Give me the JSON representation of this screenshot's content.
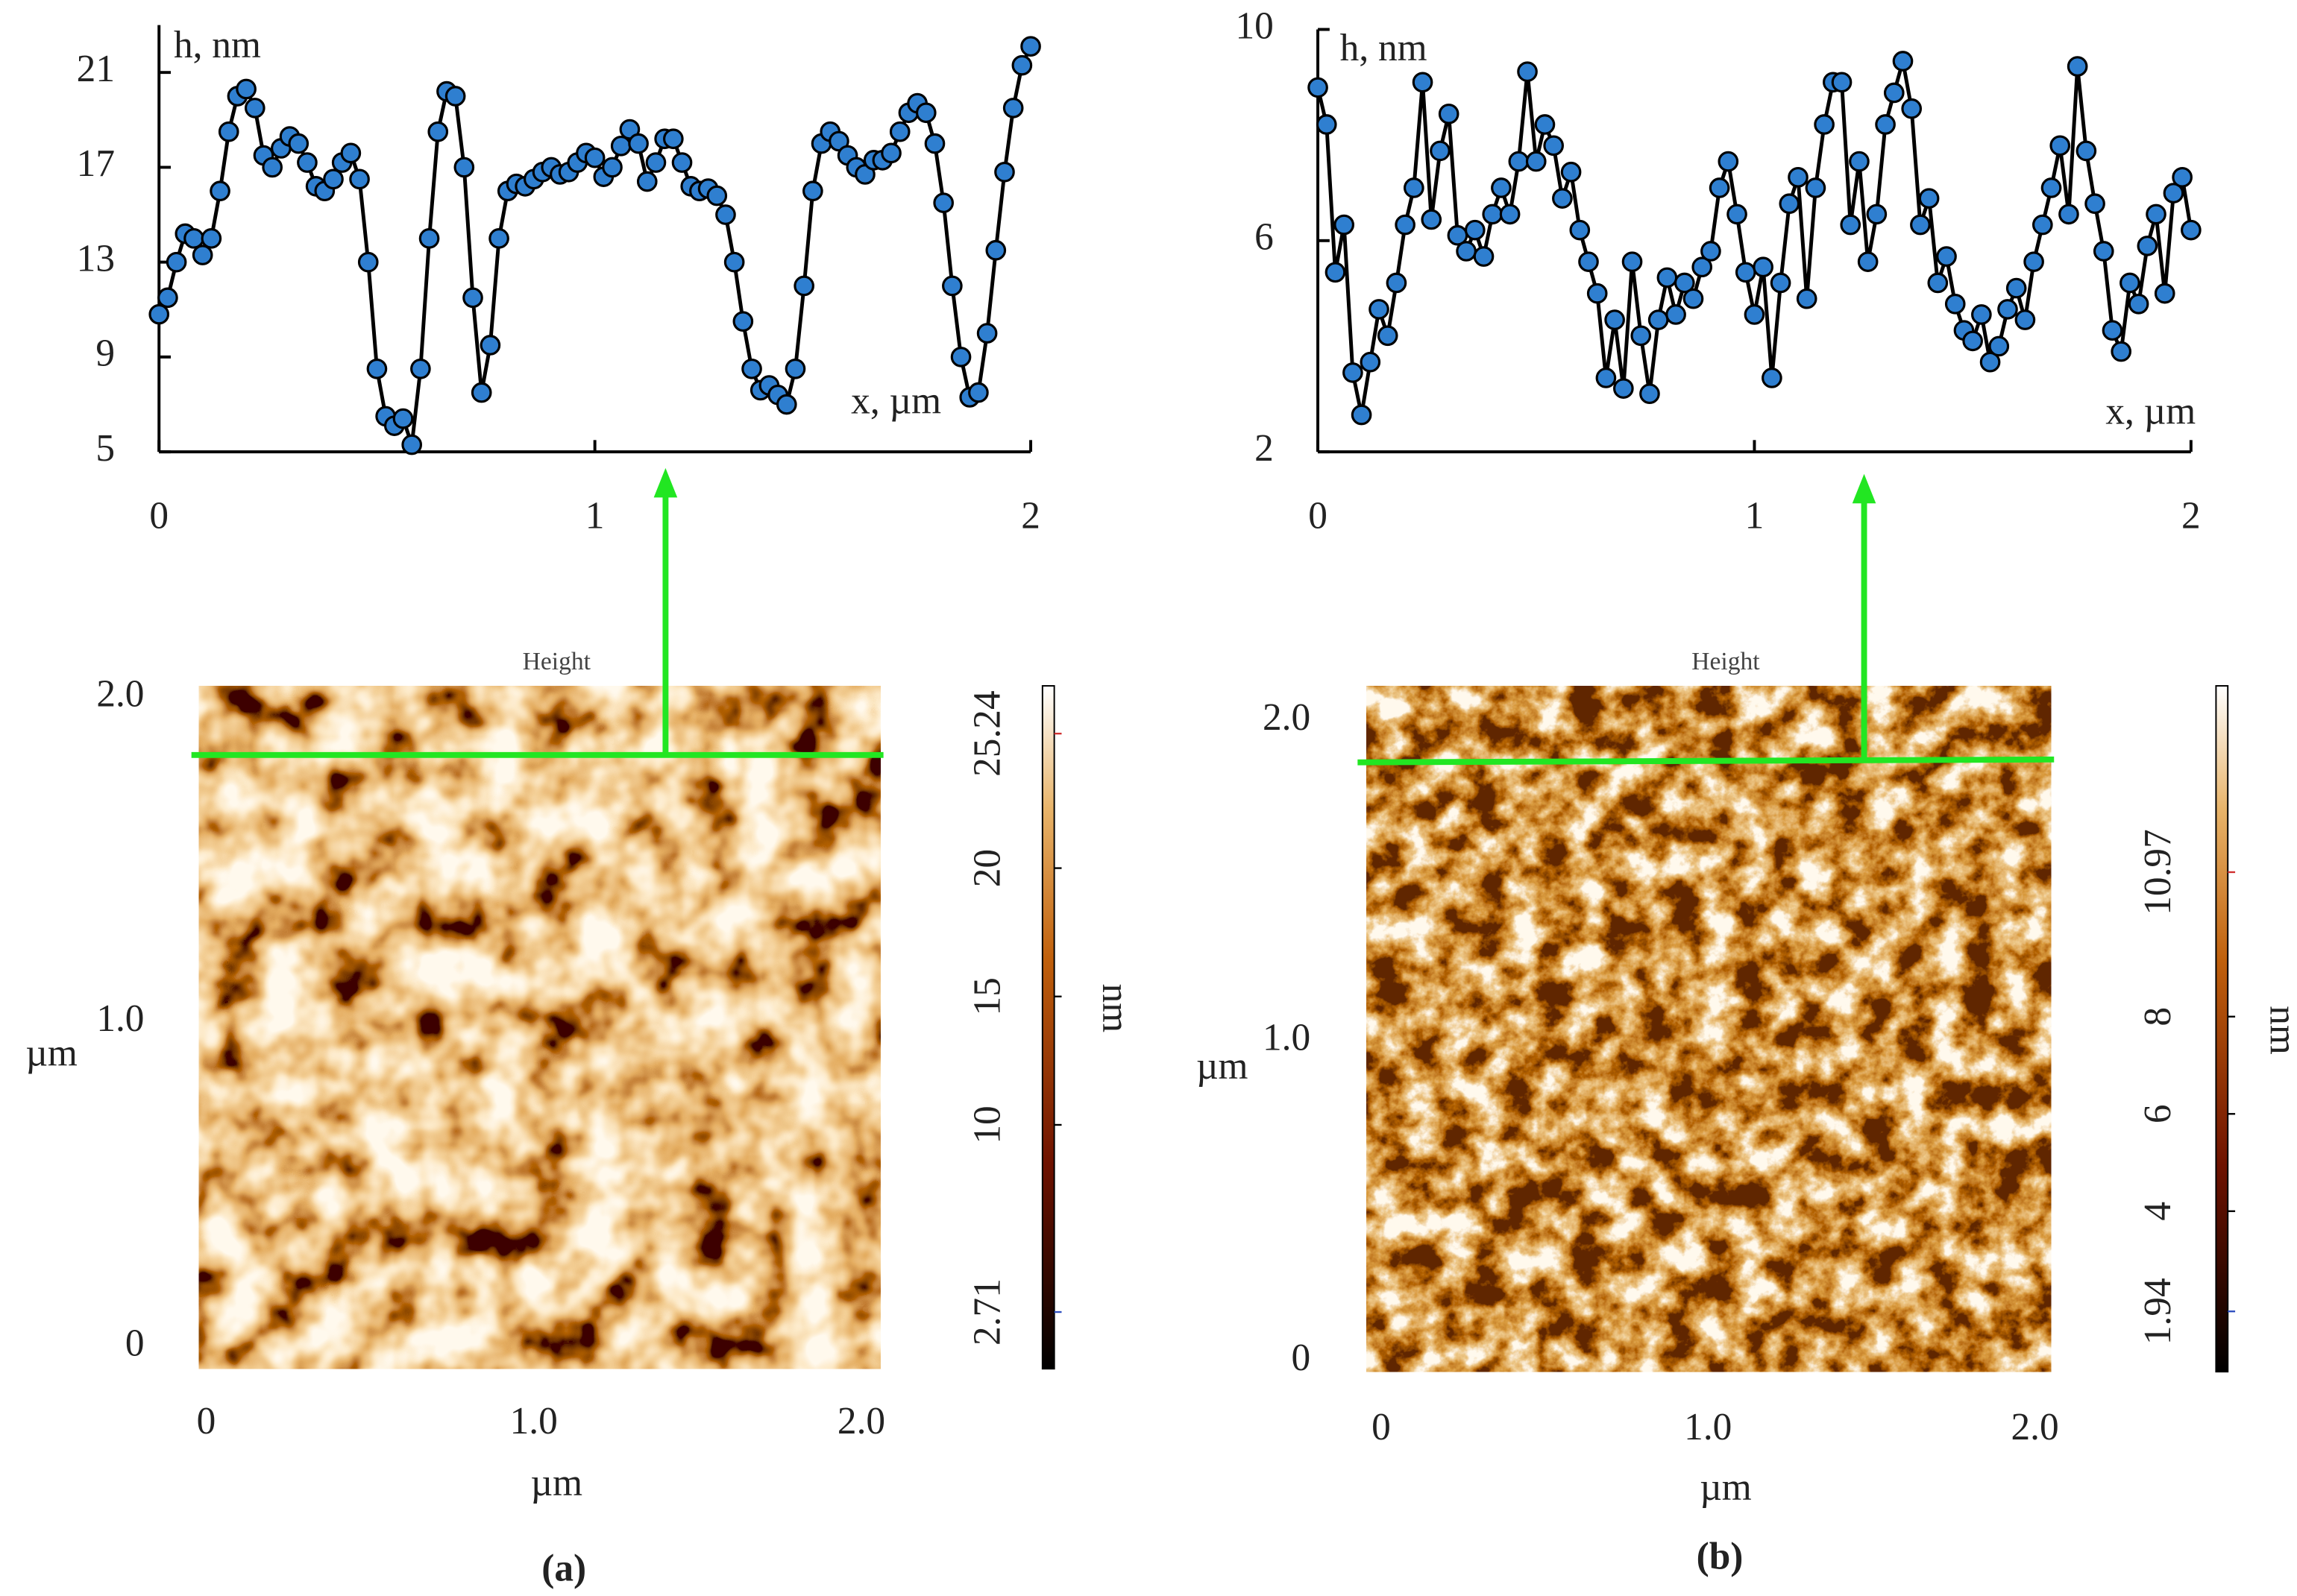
{
  "chart_data": [
    {
      "type": "line",
      "xlabel": "x, µm",
      "ylabel": "h, nm",
      "color": "#2f7fd0",
      "x": [
        0,
        0.02,
        0.04,
        0.06,
        0.08,
        0.1,
        0.12,
        0.14,
        0.16,
        0.18,
        0.2,
        0.22,
        0.24,
        0.26,
        0.28,
        0.3,
        0.32,
        0.34,
        0.36,
        0.38,
        0.4,
        0.42,
        0.44,
        0.46,
        0.48,
        0.5,
        0.52,
        0.54,
        0.56,
        0.58,
        0.6,
        0.62,
        0.64,
        0.66,
        0.68,
        0.7,
        0.72,
        0.74,
        0.76,
        0.78,
        0.8,
        0.82,
        0.84,
        0.86,
        0.88,
        0.9,
        0.92,
        0.94,
        0.96,
        0.98,
        1,
        1.02,
        1.04,
        1.06,
        1.08,
        1.1,
        1.12,
        1.14,
        1.16,
        1.18,
        1.2,
        1.22,
        1.24,
        1.26,
        1.28,
        1.3,
        1.32,
        1.34,
        1.36,
        1.38,
        1.4,
        1.42,
        1.44,
        1.46,
        1.48,
        1.5,
        1.52,
        1.54,
        1.56,
        1.58,
        1.6,
        1.62,
        1.64,
        1.66,
        1.68,
        1.7,
        1.72,
        1.74,
        1.76,
        1.78,
        1.8,
        1.82,
        1.84,
        1.86,
        1.88,
        1.9,
        1.92,
        1.94,
        1.96,
        1.98,
        2
      ],
      "values": [
        10.8,
        11.5,
        13,
        14.2,
        14,
        13.3,
        14,
        16,
        18.5,
        20,
        20.3,
        19.5,
        17.5,
        17,
        17.8,
        18.3,
        18,
        17.2,
        16.2,
        16,
        16.5,
        17.2,
        17.6,
        16.5,
        13,
        8.5,
        6.5,
        6.1,
        6.4,
        5.3,
        8.5,
        14,
        18.5,
        20.2,
        20,
        17,
        11.5,
        7.5,
        9.5,
        14,
        16,
        16.3,
        16.2,
        16.5,
        16.8,
        17,
        16.7,
        16.8,
        17.2,
        17.6,
        17.4,
        16.6,
        17,
        17.9,
        18.6,
        18,
        16.4,
        17.2,
        18.2,
        18.2,
        17.2,
        16.2,
        16,
        16.1,
        15.8,
        15,
        13,
        10.5,
        8.5,
        7.6,
        7.8,
        7.4,
        7,
        8.5,
        12,
        16,
        18,
        18.5,
        18.1,
        17.5,
        17,
        16.7,
        17.3,
        17.3,
        17.6,
        18.5,
        19.3,
        19.7,
        19.3,
        18,
        15.5,
        12,
        9,
        7.3,
        7.5,
        10,
        13.5,
        16.8,
        19.5,
        21.3,
        22.1
      ],
      "xlim": [
        0,
        2
      ],
      "xticks": [
        0,
        1,
        2
      ],
      "ylim": [
        5,
        23
      ],
      "yticks": [
        5,
        9,
        13,
        17,
        21
      ]
    },
    {
      "type": "line",
      "xlabel": "x, µm",
      "ylabel": "h, nm",
      "color": "#2f7fd0",
      "x": [
        0,
        0.02,
        0.04,
        0.06,
        0.08,
        0.1,
        0.12,
        0.14,
        0.16,
        0.18,
        0.2,
        0.22,
        0.24,
        0.26,
        0.28,
        0.3,
        0.32,
        0.34,
        0.36,
        0.38,
        0.4,
        0.42,
        0.44,
        0.46,
        0.48,
        0.5,
        0.52,
        0.54,
        0.56,
        0.58,
        0.6,
        0.62,
        0.64,
        0.66,
        0.68,
        0.7,
        0.72,
        0.74,
        0.76,
        0.78,
        0.8,
        0.82,
        0.84,
        0.86,
        0.88,
        0.9,
        0.92,
        0.94,
        0.96,
        0.98,
        1,
        1.02,
        1.04,
        1.06,
        1.08,
        1.1,
        1.12,
        1.14,
        1.16,
        1.18,
        1.2,
        1.22,
        1.24,
        1.26,
        1.28,
        1.3,
        1.32,
        1.34,
        1.36,
        1.38,
        1.4,
        1.42,
        1.44,
        1.46,
        1.48,
        1.5,
        1.52,
        1.54,
        1.56,
        1.58,
        1.6,
        1.62,
        1.64,
        1.66,
        1.68,
        1.7,
        1.72,
        1.74,
        1.76,
        1.78,
        1.8,
        1.82,
        1.84,
        1.86,
        1.88,
        1.9,
        1.92,
        1.94,
        1.96,
        1.98,
        2
      ],
      "values": [
        8.9,
        8.2,
        5.4,
        6.3,
        3.5,
        2.7,
        3.7,
        4.7,
        4.2,
        5.2,
        6.3,
        7,
        9,
        6.4,
        7.7,
        8.4,
        6.1,
        5.8,
        6.2,
        5.7,
        6.5,
        7,
        6.5,
        7.5,
        9.2,
        7.5,
        8.2,
        7.8,
        6.8,
        7.3,
        6.2,
        5.6,
        5,
        3.4,
        4.5,
        3.2,
        5.6,
        4.2,
        3.1,
        4.5,
        5.3,
        4.6,
        5.2,
        4.9,
        5.5,
        5.8,
        7,
        7.5,
        6.5,
        5.4,
        4.6,
        5.5,
        3.4,
        5.2,
        6.7,
        7.2,
        4.9,
        7,
        8.2,
        9,
        9,
        6.3,
        7.5,
        5.6,
        6.5,
        8.2,
        8.8,
        9.4,
        8.5,
        6.3,
        6.8,
        5.2,
        5.7,
        4.8,
        4.3,
        4.1,
        4.6,
        3.7,
        4,
        4.7,
        5.1,
        4.5,
        5.6,
        6.3,
        7,
        7.8,
        6.5,
        9.3,
        7.7,
        6.7,
        5.8,
        4.3,
        3.9,
        5.2,
        4.8,
        5.9,
        6.5,
        5,
        6.9,
        7.2,
        6.2
      ],
      "xlim": [
        0,
        2
      ],
      "xticks": [
        0,
        1,
        2
      ],
      "ylim": [
        2,
        10
      ],
      "yticks": [
        2,
        6,
        10
      ]
    }
  ],
  "afm_images": [
    {
      "title": "Height",
      "xlabel": "µm",
      "ylabel": "µm",
      "xlim": [
        0,
        2
      ],
      "xticks": [
        0,
        {
          "value": 1,
          "label": "1.0"
        },
        {
          "value": 2,
          "label": "2.0"
        }
      ],
      "ylim": [
        0,
        2
      ],
      "yticks": [
        0,
        {
          "value": 1,
          "label": "1.0"
        },
        {
          "value": 2,
          "label": "2.0"
        }
      ],
      "colorbar": {
        "label": "nm",
        "lim": [
          0.5,
          27.1
        ],
        "ticks": [
          2.71,
          10,
          15,
          20,
          25.24
        ]
      },
      "panel_label": "(a)"
    },
    {
      "title": "Height",
      "xlabel": "µm",
      "ylabel": "µm",
      "xlim": [
        0,
        2
      ],
      "xticks": [
        0,
        {
          "value": 1,
          "label": "1.0"
        },
        {
          "value": 2,
          "label": "2.0"
        }
      ],
      "ylim": [
        0,
        2
      ],
      "yticks": [
        0,
        {
          "value": 1,
          "label": "1.0"
        },
        {
          "value": 2,
          "label": "2.0"
        }
      ],
      "colorbar": {
        "label": "nm",
        "lim": [
          0.7,
          14.8
        ],
        "ticks": [
          1.94,
          4,
          6,
          8,
          10.97
        ]
      },
      "panel_label": "(b)"
    }
  ]
}
